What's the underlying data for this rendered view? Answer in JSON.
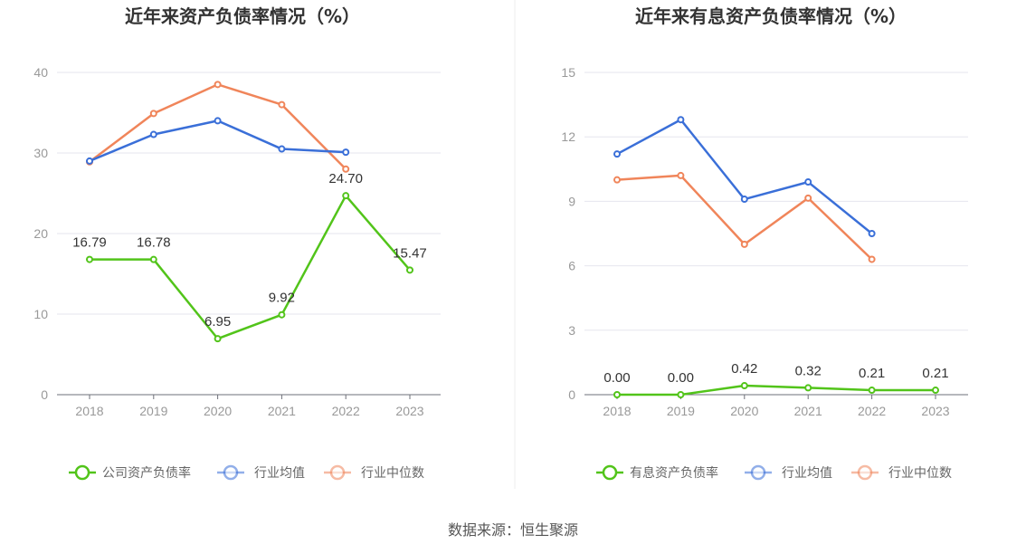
{
  "source": "数据来源：恒生聚源",
  "chart_data": [
    {
      "type": "line",
      "title": "近年来资产负债率情况（%）",
      "x": [
        "2018",
        "2019",
        "2020",
        "2021",
        "2022",
        "2023"
      ],
      "ylim": [
        0,
        40
      ],
      "yticks": [
        0,
        10,
        20,
        30,
        40
      ],
      "grid": true,
      "legend": "bottom",
      "series": [
        {
          "name": "公司资产负债率",
          "color": "#52c41a",
          "values": [
            16.79,
            16.78,
            6.95,
            9.92,
            24.7,
            15.47
          ],
          "labels": [
            "16.79",
            "16.78",
            "6.95",
            "9.92",
            "24.70",
            "15.47"
          ]
        },
        {
          "name": "行业均值",
          "color": "#3a6fd8",
          "values": [
            29.0,
            32.3,
            34.0,
            30.5,
            30.1,
            null
          ]
        },
        {
          "name": "行业中位数",
          "color": "#f0855a",
          "values": [
            28.9,
            34.9,
            38.5,
            36.0,
            28.0,
            null
          ]
        }
      ]
    },
    {
      "type": "line",
      "title": "近年来有息资产负债率情况（%）",
      "x": [
        "2018",
        "2019",
        "2020",
        "2021",
        "2022",
        "2023"
      ],
      "ylim": [
        0,
        15
      ],
      "yticks": [
        0,
        3,
        6,
        9,
        12,
        15
      ],
      "grid": true,
      "legend": "bottom",
      "series": [
        {
          "name": "有息资产负债率",
          "color": "#52c41a",
          "values": [
            0.0,
            0.0,
            0.42,
            0.32,
            0.21,
            0.21
          ],
          "labels": [
            "0.00",
            "0.00",
            "0.42",
            "0.32",
            "0.21",
            "0.21"
          ]
        },
        {
          "name": "行业均值",
          "color": "#3a6fd8",
          "values": [
            11.2,
            12.8,
            9.1,
            9.9,
            7.5,
            null
          ]
        },
        {
          "name": "行业中位数",
          "color": "#f0855a",
          "values": [
            10.0,
            10.2,
            7.0,
            9.15,
            6.3,
            null
          ]
        }
      ]
    }
  ]
}
